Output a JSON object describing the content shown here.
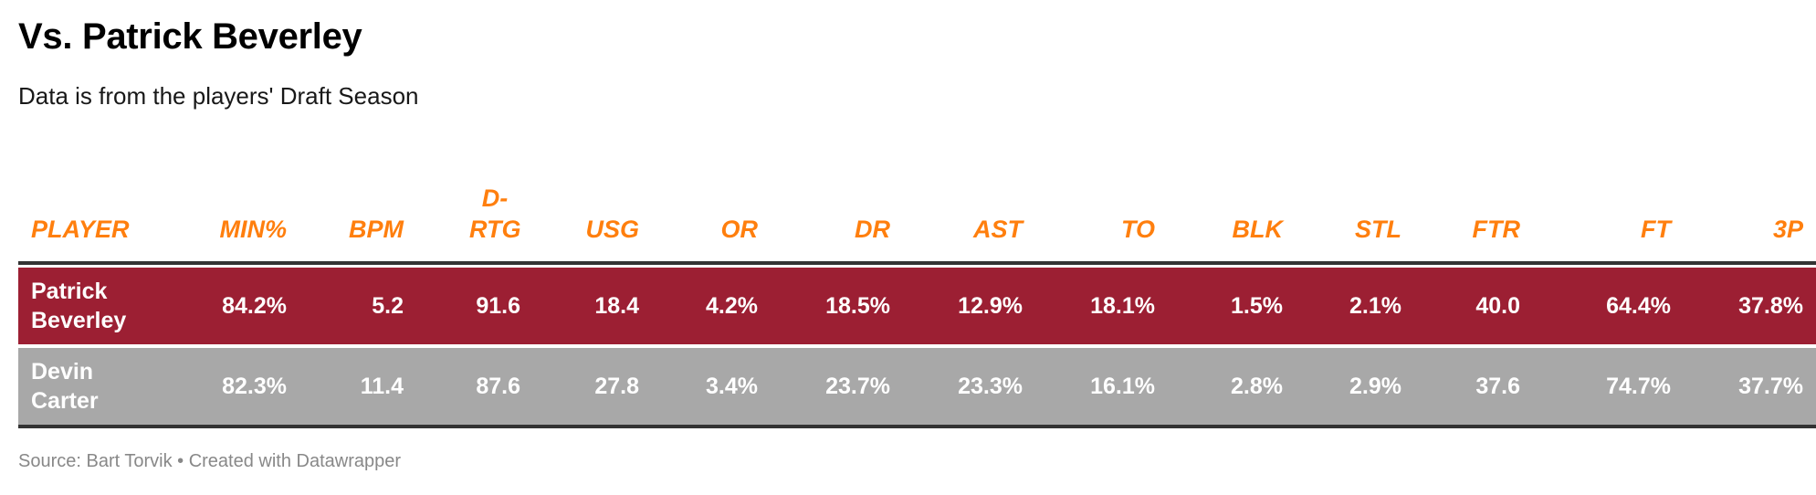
{
  "title": "Vs. Patrick Beverley",
  "subtitle": "Data is from the players' Draft Season",
  "source": "Source: Bart Torvik • Created with Datawrapper",
  "colors": {
    "header_text": "#ff7f0e",
    "row_1_bg": "#9c1f33",
    "row_2_bg": "#a8a8a8",
    "rule": "#333333"
  },
  "chart_data": {
    "type": "table",
    "columns": [
      "PLAYER",
      "MIN%",
      "BPM",
      "D-RTG",
      "USG",
      "OR",
      "DR",
      "AST",
      "TO",
      "BLK",
      "STL",
      "FTR",
      "FT",
      "3P"
    ],
    "rows": [
      [
        "Patrick Beverley",
        "84.2%",
        "5.2",
        "91.6",
        "18.4",
        "4.2%",
        "18.5%",
        "12.9%",
        "18.1%",
        "1.5%",
        "2.1%",
        "40.0",
        "64.4%",
        "37.8%"
      ],
      [
        "Devin Carter",
        "82.3%",
        "11.4",
        "87.6",
        "27.8",
        "3.4%",
        "23.7%",
        "23.3%",
        "16.1%",
        "2.8%",
        "2.9%",
        "37.6",
        "74.7%",
        "37.7%"
      ]
    ]
  }
}
